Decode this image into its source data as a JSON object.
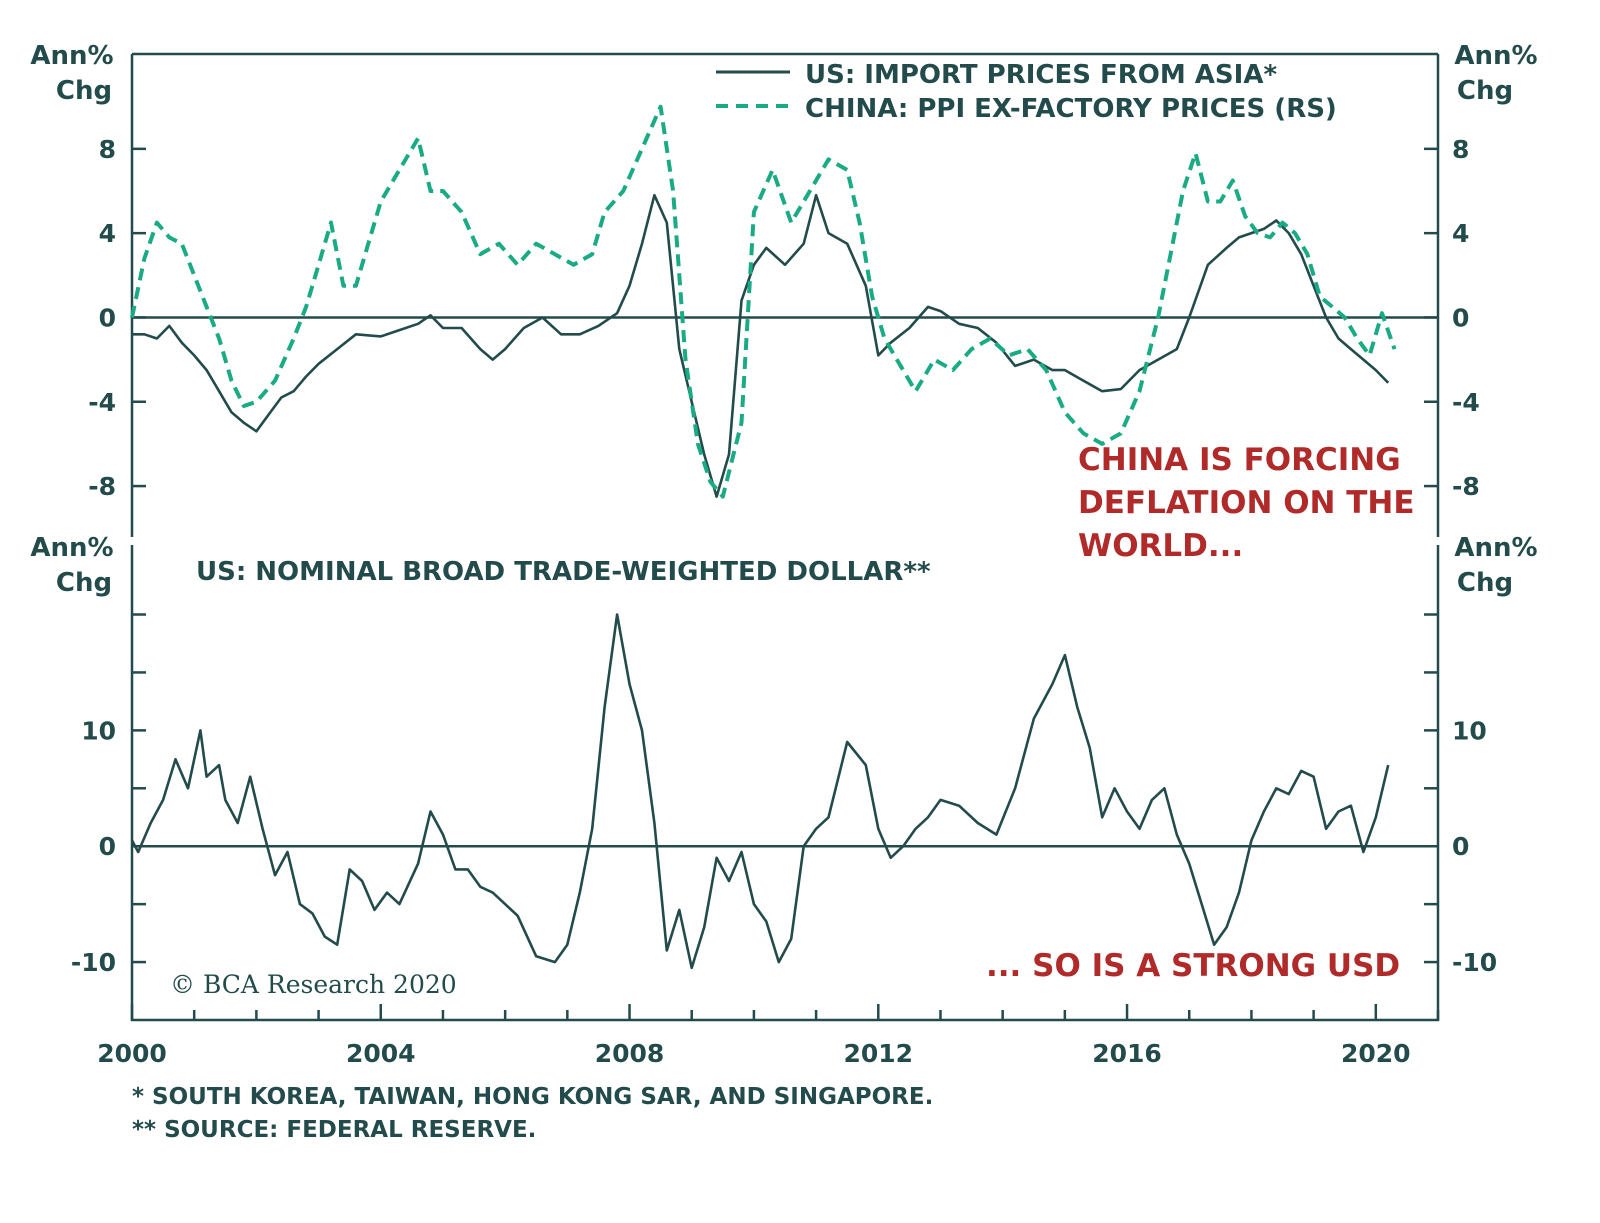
{
  "colors": {
    "dark": "#234b4b",
    "green_dashed": "#1aab84",
    "annotation_red": "#b02a2a"
  },
  "chart_data": [
    {
      "type": "line",
      "title": "",
      "left_unit_label": [
        "Ann%",
        "Chg"
      ],
      "right_unit_label": [
        "Ann%",
        "Chg"
      ],
      "y_ticks": [
        "8",
        "4",
        "0",
        "-4",
        "-8"
      ],
      "ylim": [
        -9.8,
        12.5
      ],
      "xlim": [
        2000,
        2021
      ],
      "legend_position": "top-right",
      "annotation": [
        "CHINA IS FORCING",
        "DEFLATION ON THE",
        "WORLD..."
      ],
      "series": [
        {
          "name": "US: IMPORT PRICES FROM ASIA*",
          "style": "solid",
          "axis": "left",
          "x": [
            2000.0,
            2000.2,
            2000.4,
            2000.6,
            2000.8,
            2001.0,
            2001.2,
            2001.4,
            2001.6,
            2001.8,
            2002.0,
            2002.2,
            2002.4,
            2002.6,
            2002.8,
            2003.0,
            2003.3,
            2003.6,
            2004.0,
            2004.3,
            2004.6,
            2004.8,
            2005.0,
            2005.3,
            2005.6,
            2005.8,
            2006.0,
            2006.3,
            2006.6,
            2006.9,
            2007.2,
            2007.5,
            2007.8,
            2008.0,
            2008.2,
            2008.4,
            2008.6,
            2008.8,
            2009.0,
            2009.2,
            2009.4,
            2009.6,
            2009.8,
            2010.0,
            2010.2,
            2010.5,
            2010.8,
            2011.0,
            2011.2,
            2011.5,
            2011.8,
            2012.0,
            2012.2,
            2012.5,
            2012.8,
            2013.0,
            2013.3,
            2013.6,
            2013.9,
            2014.2,
            2014.5,
            2014.8,
            2015.0,
            2015.3,
            2015.6,
            2015.9,
            2016.2,
            2016.5,
            2016.8,
            2017.0,
            2017.3,
            2017.6,
            2017.8,
            2018.0,
            2018.2,
            2018.4,
            2018.6,
            2018.8,
            2019.0,
            2019.2,
            2019.4,
            2019.6,
            2019.8,
            2020.0,
            2020.2
          ],
          "y": [
            -0.8,
            -0.8,
            -1.0,
            -0.4,
            -1.2,
            -1.8,
            -2.5,
            -3.5,
            -4.5,
            -5.0,
            -5.4,
            -4.6,
            -3.8,
            -3.5,
            -2.8,
            -2.2,
            -1.5,
            -0.8,
            -0.9,
            -0.6,
            -0.3,
            0.1,
            -0.5,
            -0.5,
            -1.5,
            -2.0,
            -1.5,
            -0.5,
            0.0,
            -0.8,
            -0.8,
            -0.4,
            0.2,
            1.5,
            3.5,
            5.8,
            4.5,
            -1.5,
            -4.0,
            -6.5,
            -8.5,
            -6.5,
            0.8,
            2.5,
            3.3,
            2.5,
            3.5,
            5.8,
            4.0,
            3.5,
            1.5,
            -1.8,
            -1.2,
            -0.5,
            0.5,
            0.3,
            -0.3,
            -0.5,
            -1.2,
            -2.3,
            -2.0,
            -2.5,
            -2.5,
            -3.0,
            -3.5,
            -3.4,
            -2.5,
            -2.0,
            -1.5,
            0.0,
            2.5,
            3.3,
            3.8,
            4.0,
            4.2,
            4.6,
            4.0,
            3.0,
            1.5,
            0.0,
            -1.0,
            -1.5,
            -2.0,
            -2.5,
            -3.1
          ]
        },
        {
          "name": "CHINA: PPI EX-FACTORY PRICES (RS)",
          "style": "dashed",
          "axis": "right",
          "x": [
            2000.0,
            2000.2,
            2000.4,
            2000.6,
            2000.8,
            2001.0,
            2001.2,
            2001.4,
            2001.6,
            2001.8,
            2002.0,
            2002.3,
            2002.6,
            2002.8,
            2003.0,
            2003.2,
            2003.4,
            2003.6,
            2003.8,
            2004.0,
            2004.3,
            2004.6,
            2004.8,
            2005.0,
            2005.3,
            2005.6,
            2005.9,
            2006.2,
            2006.5,
            2006.8,
            2007.1,
            2007.4,
            2007.6,
            2007.9,
            2008.2,
            2008.5,
            2008.7,
            2008.9,
            2009.1,
            2009.3,
            2009.5,
            2009.8,
            2010.0,
            2010.3,
            2010.6,
            2010.9,
            2011.2,
            2011.5,
            2011.7,
            2011.9,
            2012.1,
            2012.3,
            2012.6,
            2012.9,
            2013.2,
            2013.5,
            2013.8,
            2014.1,
            2014.4,
            2014.7,
            2015.0,
            2015.3,
            2015.6,
            2015.9,
            2016.2,
            2016.5,
            2016.7,
            2016.9,
            2017.1,
            2017.3,
            2017.5,
            2017.7,
            2017.9,
            2018.1,
            2018.3,
            2018.5,
            2018.7,
            2018.9,
            2019.1,
            2019.3,
            2019.5,
            2019.7,
            2019.9,
            2020.1,
            2020.3
          ],
          "y": [
            0.0,
            2.8,
            4.5,
            3.8,
            3.5,
            2.0,
            0.5,
            -1.0,
            -3.0,
            -4.2,
            -4.0,
            -3.0,
            -1.0,
            0.5,
            2.5,
            4.5,
            1.5,
            1.5,
            3.5,
            5.5,
            7.0,
            8.5,
            6.0,
            6.0,
            5.0,
            3.0,
            3.5,
            2.5,
            3.5,
            3.0,
            2.5,
            3.0,
            5.0,
            6.0,
            8.0,
            10.0,
            6.0,
            -2.0,
            -6.0,
            -7.8,
            -8.5,
            -5.0,
            5.0,
            7.0,
            4.5,
            6.0,
            7.5,
            7.0,
            4.5,
            1.0,
            -1.0,
            -2.0,
            -3.5,
            -2.0,
            -2.5,
            -1.5,
            -1.0,
            -1.8,
            -1.5,
            -2.5,
            -4.5,
            -5.5,
            -6.0,
            -5.5,
            -3.5,
            0.0,
            3.0,
            6.0,
            7.8,
            5.5,
            5.5,
            6.5,
            4.8,
            4.0,
            3.8,
            4.5,
            4.0,
            3.0,
            1.0,
            0.5,
            0.0,
            -1.0,
            -1.8,
            0.2,
            -1.5
          ]
        }
      ]
    },
    {
      "type": "line",
      "title": "US: NOMINAL BROAD TRADE-WEIGHTED DOLLAR**",
      "left_unit_label": [
        "Ann%",
        "Chg"
      ],
      "right_unit_label": [
        "Ann%",
        "Chg"
      ],
      "y_ticks": [
        "10",
        "0",
        "-10"
      ],
      "ylim": [
        -15,
        26
      ],
      "xlim": [
        2000,
        2021
      ],
      "x_ticks": [
        "2000",
        "2004",
        "2008",
        "2012",
        "2016",
        "2020"
      ],
      "annotation": [
        "... SO IS A STRONG USD"
      ],
      "copyright": "© BCA Research 2020",
      "series": [
        {
          "name": "US: NOMINAL BROAD TRADE-WEIGHTED DOLLAR**",
          "style": "solid",
          "x": [
            2000.0,
            2000.1,
            2000.3,
            2000.5,
            2000.7,
            2000.9,
            2001.1,
            2001.2,
            2001.4,
            2001.5,
            2001.7,
            2001.9,
            2002.1,
            2002.3,
            2002.5,
            2002.7,
            2002.9,
            2003.1,
            2003.3,
            2003.5,
            2003.7,
            2003.9,
            2004.1,
            2004.3,
            2004.6,
            2004.8,
            2005.0,
            2005.2,
            2005.4,
            2005.6,
            2005.8,
            2006.0,
            2006.2,
            2006.5,
            2006.8,
            2007.0,
            2007.2,
            2007.4,
            2007.6,
            2007.8,
            2008.0,
            2008.2,
            2008.4,
            2008.6,
            2008.8,
            2009.0,
            2009.2,
            2009.4,
            2009.6,
            2009.8,
            2010.0,
            2010.2,
            2010.4,
            2010.6,
            2010.8,
            2011.0,
            2011.2,
            2011.5,
            2011.8,
            2012.0,
            2012.2,
            2012.4,
            2012.6,
            2012.8,
            2013.0,
            2013.3,
            2013.6,
            2013.9,
            2014.2,
            2014.5,
            2014.8,
            2015.0,
            2015.2,
            2015.4,
            2015.6,
            2015.8,
            2016.0,
            2016.2,
            2016.4,
            2016.6,
            2016.8,
            2017.0,
            2017.2,
            2017.4,
            2017.6,
            2017.8,
            2018.0,
            2018.2,
            2018.4,
            2018.6,
            2018.8,
            2019.0,
            2019.2,
            2019.4,
            2019.6,
            2019.8,
            2020.0,
            2020.2
          ],
          "y": [
            0.5,
            -0.5,
            2.0,
            4.0,
            7.5,
            5.0,
            10.0,
            6.0,
            7.0,
            4.0,
            2.0,
            6.0,
            1.5,
            -2.5,
            -0.5,
            -5.0,
            -5.8,
            -7.8,
            -8.5,
            -2.0,
            -3.0,
            -5.5,
            -4.0,
            -5.0,
            -1.5,
            3.0,
            1.0,
            -2.0,
            -2.0,
            -3.5,
            -4.0,
            -5.0,
            -6.0,
            -9.5,
            -10.0,
            -8.5,
            -4.0,
            1.5,
            12.0,
            20.0,
            14.0,
            10.0,
            2.0,
            -9.0,
            -5.5,
            -10.5,
            -7.0,
            -1.0,
            -3.0,
            -0.5,
            -5.0,
            -6.5,
            -10.0,
            -8.0,
            0.0,
            1.5,
            2.5,
            9.0,
            7.0,
            1.5,
            -1.0,
            0.0,
            1.5,
            2.5,
            4.0,
            3.5,
            2.0,
            1.0,
            5.0,
            11.0,
            14.0,
            16.5,
            12.0,
            8.5,
            2.5,
            5.0,
            3.0,
            1.5,
            4.0,
            5.0,
            1.0,
            -1.5,
            -5.0,
            -8.5,
            -7.0,
            -4.0,
            0.5,
            3.0,
            5.0,
            4.5,
            6.5,
            6.0,
            1.5,
            3.0,
            3.5,
            -0.5,
            2.5,
            7.0
          ]
        }
      ]
    }
  ],
  "footnotes": [
    "*  SOUTH KOREA, TAIWAN, HONG KONG SAR, AND SINGAPORE.",
    "** SOURCE: FEDERAL RESERVE."
  ]
}
